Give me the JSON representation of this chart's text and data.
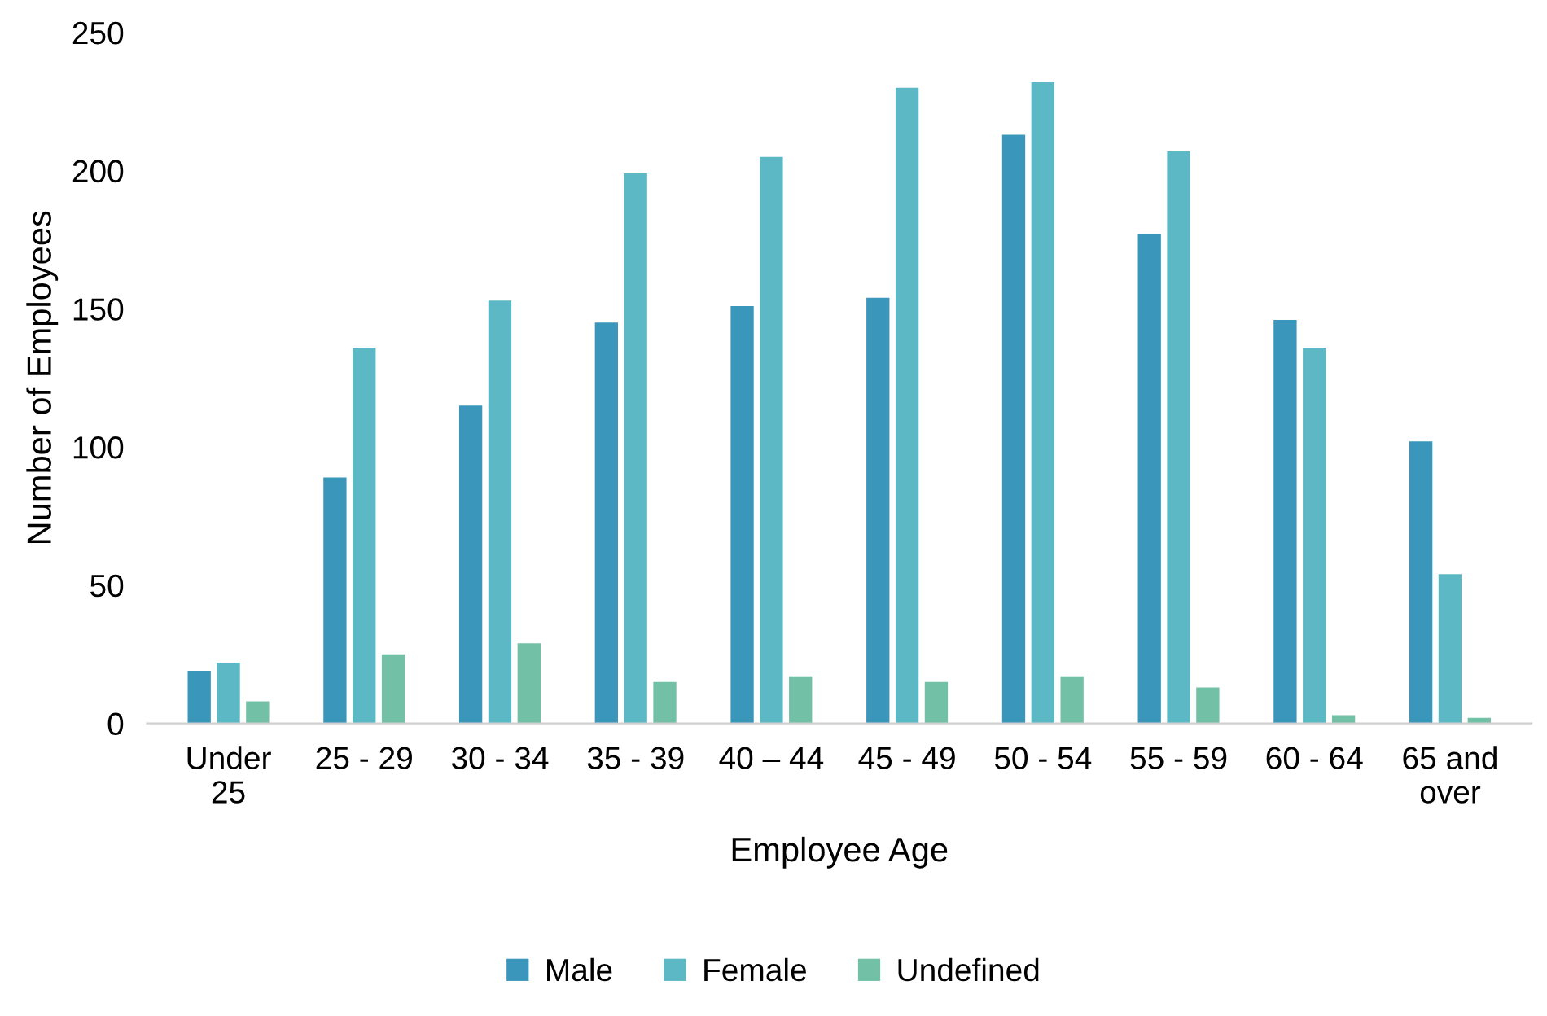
{
  "chart_data": {
    "type": "bar",
    "xlabel": "Employee Age",
    "ylabel": "Number of Employees",
    "categories": [
      "Under 25",
      "25 - 29",
      "30 - 34",
      "35 - 39",
      "40 – 44",
      "45 - 49",
      "50 - 54",
      "55 - 59",
      "60 - 64",
      "65 and over"
    ],
    "series": [
      {
        "name": "Male",
        "color": "#3a96bb",
        "values": [
          19,
          89,
          115,
          145,
          151,
          154,
          213,
          177,
          146,
          102
        ]
      },
      {
        "name": "Female",
        "color": "#5bb8c4",
        "values": [
          22,
          136,
          153,
          199,
          205,
          230,
          232,
          207,
          136,
          54
        ]
      },
      {
        "name": "Undefined",
        "color": "#72c0a6",
        "values": [
          8,
          25,
          29,
          15,
          17,
          15,
          17,
          13,
          3,
          2
        ]
      }
    ],
    "ylim": [
      0,
      250
    ],
    "yticks": [
      0,
      50,
      100,
      150,
      200,
      250
    ],
    "grid": false,
    "legend": "bottom"
  }
}
